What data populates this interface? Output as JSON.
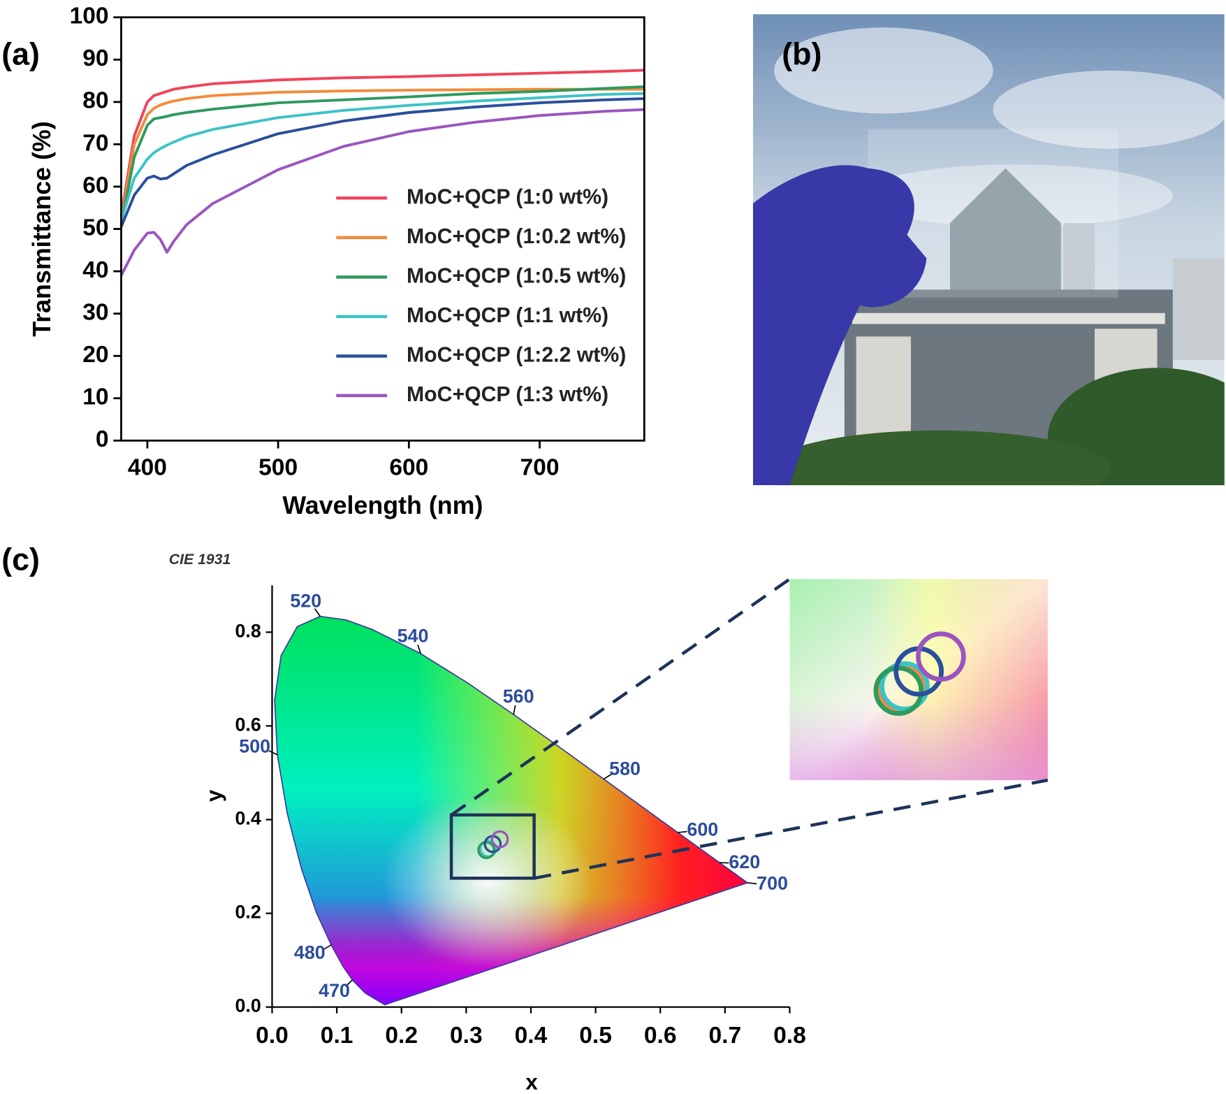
{
  "chart_data": [
    {
      "type": "line",
      "panel_label": "(a)",
      "x_label": "Wavelength (nm)",
      "y_label": "Transmittance (%)",
      "x": [
        380,
        390,
        400,
        405,
        410,
        415,
        420,
        430,
        450,
        500,
        550,
        600,
        650,
        700,
        750,
        780
      ],
      "series": [
        {
          "name": "MoC+QCP (1:0 wt%)",
          "color": "#f0445a",
          "values": [
            53,
            72,
            80,
            81.5,
            82,
            82.5,
            83,
            83.5,
            84.3,
            85.2,
            85.7,
            86,
            86.4,
            86.8,
            87.2,
            87.5
          ]
        },
        {
          "name": "MoC+QCP (1:0.2 wt%)",
          "color": "#f28c3c",
          "values": [
            52,
            70,
            77,
            78.5,
            79.3,
            79.8,
            80.2,
            80.8,
            81.5,
            82.3,
            82.6,
            82.8,
            82.9,
            83,
            83,
            83
          ]
        },
        {
          "name": "MoC+QCP (1:0.5 wt%)",
          "color": "#2e9a5e",
          "values": [
            51,
            67,
            74.5,
            76,
            76.3,
            76.6,
            77,
            77.5,
            78.3,
            79.8,
            80.5,
            81.2,
            82,
            82.5,
            83.2,
            83.6
          ]
        },
        {
          "name": "MoC+QCP (1:1 wt%)",
          "color": "#3cc3c6",
          "values": [
            52,
            62,
            66.5,
            68,
            69,
            69.8,
            70.5,
            71.8,
            73.5,
            76.3,
            78,
            79.2,
            80.2,
            81,
            81.8,
            82
          ]
        },
        {
          "name": "MoC+QCP (1:2.2 wt%)",
          "color": "#2a4f9c",
          "values": [
            50.5,
            58,
            62,
            62.5,
            61.8,
            62,
            63,
            65,
            67.5,
            72.5,
            75.5,
            77.5,
            78.8,
            79.8,
            80.5,
            80.8
          ]
        },
        {
          "name": "MoC+QCP (1:3 wt%)",
          "color": "#9a55c0",
          "values": [
            39,
            45,
            49,
            49.2,
            47.5,
            44.5,
            47,
            51,
            56,
            64,
            69.5,
            73,
            75.2,
            76.8,
            77.8,
            78.2
          ]
        }
      ],
      "xlim": [
        380,
        780
      ],
      "ylim": [
        0,
        100
      ],
      "xticks": [
        400,
        500,
        600,
        700
      ],
      "yticks": [
        0,
        10,
        20,
        30,
        40,
        50,
        60,
        70,
        80,
        90,
        100
      ],
      "legend": "lower right"
    },
    {
      "type": "scatter",
      "panel_label": "(c)",
      "subtitle": "CIE 1931",
      "x_label": "x",
      "y_label": "y",
      "xlim": [
        0,
        0.8
      ],
      "ylim": [
        0,
        0.9
      ],
      "xticks": [
        {
          "value": 0,
          "label": "0.0"
        },
        0.1,
        0.2,
        0.3,
        0.4,
        0.5,
        0.6,
        0.7,
        0.8
      ],
      "yticks": [
        {
          "value": 0,
          "label": "0.0"
        },
        0.2,
        0.4,
        0.6,
        0.8
      ],
      "spectral_locus": {
        "x": [
          0.1741,
          0.144,
          0.1241,
          0.1096,
          0.0913,
          0.0687,
          0.0454,
          0.0235,
          0.0082,
          0.0039,
          0.0139,
          0.0389,
          0.0743,
          0.1142,
          0.1547,
          0.2296,
          0.3016,
          0.3731,
          0.4441,
          0.5125,
          0.5752,
          0.627,
          0.6915,
          0.7347
        ],
        "y": [
          0.005,
          0.0297,
          0.0578,
          0.0868,
          0.1327,
          0.2007,
          0.295,
          0.4127,
          0.5384,
          0.6548,
          0.7502,
          0.812,
          0.8338,
          0.8262,
          0.8059,
          0.7543,
          0.6923,
          0.6245,
          0.5547,
          0.4866,
          0.4242,
          0.3725,
          0.3083,
          0.2653
        ]
      },
      "wavelength_labels": [
        {
          "label": "520",
          "x": 0.0743,
          "y": 0.8338
        },
        {
          "label": "540",
          "x": 0.2296,
          "y": 0.7543
        },
        {
          "label": "560",
          "x": 0.3731,
          "y": 0.6245
        },
        {
          "label": "580",
          "x": 0.5125,
          "y": 0.4866
        },
        {
          "label": "600",
          "x": 0.627,
          "y": 0.3725
        },
        {
          "label": "620",
          "x": 0.6915,
          "y": 0.3083
        },
        {
          "label": "700",
          "x": 0.7347,
          "y": 0.2653
        },
        {
          "label": "500",
          "x": 0.0082,
          "y": 0.5384
        },
        {
          "label": "480",
          "x": 0.0913,
          "y": 0.1327
        },
        {
          "label": "470",
          "x": 0.1241,
          "y": 0.0578
        }
      ],
      "series": [
        {
          "color": "#f0445a",
          "x": [
            0.333
          ],
          "values": [
            0.337
          ]
        },
        {
          "color": "#f28c3c",
          "x": [
            0.332
          ],
          "values": [
            0.336
          ]
        },
        {
          "color": "#3cc3c6",
          "x": [
            0.334
          ],
          "values": [
            0.338
          ]
        },
        {
          "color": "#2e9a5e",
          "x": [
            0.331
          ],
          "values": [
            0.335
          ]
        },
        {
          "color": "#2a4f9c",
          "x": [
            0.341
          ],
          "values": [
            0.348
          ]
        },
        {
          "color": "#9a55c0",
          "x": [
            0.352
          ],
          "values": [
            0.358
          ]
        }
      ],
      "zoom_box": {
        "xlim": [
          0.277,
          0.405
        ],
        "ylim": [
          0.275,
          0.41
        ]
      }
    }
  ],
  "photo": {
    "panel_label": "(b)"
  }
}
